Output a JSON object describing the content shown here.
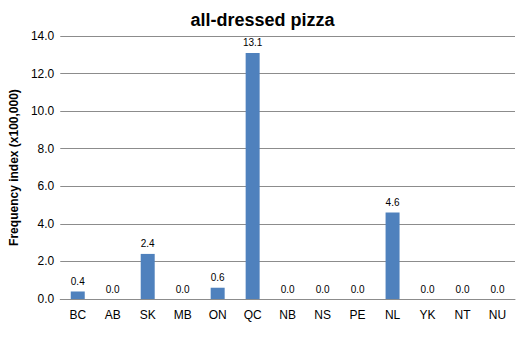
{
  "chart_data": {
    "type": "bar",
    "title": "all-dressed pizza",
    "y_label": "Frequency index (x100,000)",
    "categories": [
      "BC",
      "AB",
      "SK",
      "MB",
      "ON",
      "QC",
      "NB",
      "NS",
      "PE",
      "NL",
      "YK",
      "NT",
      "NU"
    ],
    "values": [
      0.4,
      0,
      2.4,
      0,
      0.6,
      13.1,
      0,
      0,
      0,
      4.6,
      0,
      0,
      0
    ],
    "value_labels": [
      "0.4",
      "0.0",
      "2.4",
      "0.0",
      "0.6",
      "13.1",
      "0.0",
      "0.0",
      "0.0",
      "4.6",
      "0.0",
      "0.0",
      "0.0"
    ],
    "color": "#4f81bd",
    "ylim": [
      0,
      14
    ],
    "yticks": [
      {
        "value": 0,
        "label": "0.0"
      },
      {
        "value": 2,
        "label": "2.0"
      },
      {
        "value": 4,
        "label": "4.0"
      },
      {
        "value": 6,
        "label": "6.0"
      },
      {
        "value": 8,
        "label": "8.0"
      },
      {
        "value": 10,
        "label": "10.0"
      },
      {
        "value": 12,
        "label": "12.0"
      },
      {
        "value": 14,
        "label": "14.0"
      }
    ],
    "grid": true,
    "data_labels": true
  }
}
